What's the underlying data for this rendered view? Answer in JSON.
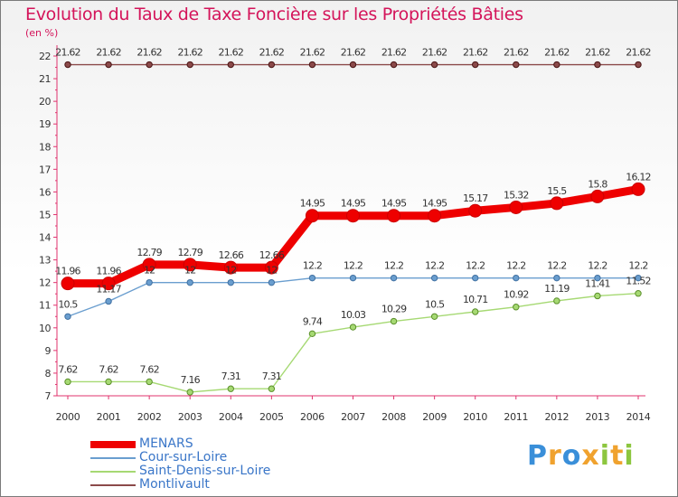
{
  "chart_data": {
    "type": "line",
    "title": "Evolution du Taux de Taxe Foncière sur les Propriétés Bâties",
    "ylabel": "(en %)",
    "xlabel": "",
    "x": [
      "2000",
      "2001",
      "2002",
      "2003",
      "2004",
      "2005",
      "2006",
      "2007",
      "2008",
      "2009",
      "2010",
      "2011",
      "2012",
      "2013",
      "2014"
    ],
    "ylim": [
      7,
      22
    ],
    "yticks": [
      "7",
      "8",
      "9",
      "10",
      "11",
      "12",
      "13",
      "14",
      "15",
      "16",
      "17",
      "18",
      "19",
      "20",
      "21",
      "22"
    ],
    "series": [
      {
        "name": "MENARS",
        "color": "#ee0000",
        "values": [
          11.96,
          11.96,
          12.79,
          12.79,
          12.66,
          12.66,
          14.95,
          14.95,
          14.95,
          14.95,
          15.17,
          15.32,
          15.5,
          15.8,
          16.12
        ],
        "labels": [
          "11.96",
          "11.96",
          "12.79",
          "12.79",
          "12.66",
          "12.66",
          "14.95",
          "14.95",
          "14.95",
          "14.95",
          "15.17",
          "15.32",
          "15.5",
          "15.8",
          "16.12"
        ]
      },
      {
        "name": "Cour-sur-Loire",
        "color": "#6a9ecf",
        "values": [
          10.5,
          11.17,
          12,
          12,
          12,
          12,
          12.2,
          12.2,
          12.2,
          12.2,
          12.2,
          12.2,
          12.2,
          12.2,
          12.2
        ],
        "labels": [
          "10.5",
          "11.17",
          "12",
          "12",
          "12",
          "12",
          "12.2",
          "12.2",
          "12.2",
          "12.2",
          "12.2",
          "12.2",
          "12.2",
          "12.2",
          "12.2"
        ]
      },
      {
        "name": "Saint-Denis-sur-Loire",
        "color": "#a6d973",
        "values": [
          7.62,
          7.62,
          7.62,
          7.16,
          7.31,
          7.31,
          9.74,
          10.03,
          10.29,
          10.5,
          10.71,
          10.92,
          11.19,
          11.41,
          11.52
        ],
        "labels": [
          "7.62",
          "7.62",
          "7.62",
          "7.16",
          "7.31",
          "7.31",
          "9.74",
          "10.03",
          "10.29",
          "10.5",
          "10.71",
          "10.92",
          "11.19",
          "11.41",
          "11.52"
        ]
      },
      {
        "name": "Montlivault",
        "color": "#8b4a4a",
        "values": [
          21.62,
          21.62,
          21.62,
          21.62,
          21.62,
          21.62,
          21.62,
          21.62,
          21.62,
          21.62,
          21.62,
          21.62,
          21.62,
          21.62,
          21.62
        ],
        "labels": [
          "21.62",
          "21.62",
          "21.62",
          "21.62",
          "21.62",
          "21.62",
          "21.62",
          "21.62",
          "21.62",
          "21.62",
          "21.62",
          "21.62",
          "21.62",
          "21.62",
          "21.62"
        ]
      }
    ]
  },
  "brand": {
    "letters": [
      "P",
      "r",
      "o",
      "x",
      "i",
      "t",
      "i"
    ],
    "colors": [
      "#3a8fd9",
      "#f0a22e",
      "#3a8fd9",
      "#f0a22e",
      "#8cc63f",
      "#f0a22e",
      "#8cc63f"
    ]
  }
}
